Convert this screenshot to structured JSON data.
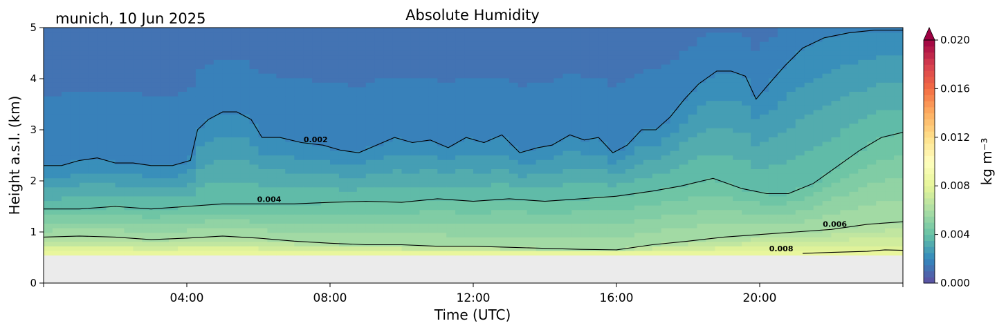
{
  "chart_data": {
    "type": "contour",
    "title": "Absolute Humidity",
    "location_date": "munich, 10 Jun 2025",
    "xlabel": "Time (UTC)",
    "ylabel": "Height a.s.l. (km)",
    "xlim_hours": [
      0,
      24
    ],
    "ylim": [
      0,
      5
    ],
    "x_ticks": [
      {
        "hour": 4,
        "label": "04:00"
      },
      {
        "hour": 8,
        "label": "08:00"
      },
      {
        "hour": 12,
        "label": "12:00"
      },
      {
        "hour": 16,
        "label": "16:00"
      },
      {
        "hour": 20,
        "label": "20:00"
      }
    ],
    "y_ticks": [
      {
        "value": 0,
        "label": "0"
      },
      {
        "value": 1,
        "label": "1"
      },
      {
        "value": 2,
        "label": "2"
      },
      {
        "value": 3,
        "label": "3"
      },
      {
        "value": 4,
        "label": "4"
      },
      {
        "value": 5,
        "label": "5"
      }
    ],
    "data_floor_km": 0.55,
    "no_data_color": "#ebebeb",
    "colormap": "Spectral_r",
    "colorbar": {
      "label": "kg m⁻³",
      "range": [
        0.0,
        0.02
      ],
      "extend": "max",
      "ticks": [
        {
          "value": 0.0,
          "label": "0.000"
        },
        {
          "value": 0.004,
          "label": "0.004"
        },
        {
          "value": 0.008,
          "label": "0.008"
        },
        {
          "value": 0.012,
          "label": "0.012"
        },
        {
          "value": 0.016,
          "label": "0.016"
        },
        {
          "value": 0.02,
          "label": "0.020"
        }
      ]
    },
    "contours": [
      {
        "level": 0.002,
        "label": "0.002",
        "label_hour": 7.6,
        "points": [
          [
            0,
            2.3
          ],
          [
            0.5,
            2.3
          ],
          [
            1,
            2.4
          ],
          [
            1.5,
            2.45
          ],
          [
            2,
            2.35
          ],
          [
            2.5,
            2.35
          ],
          [
            3,
            2.3
          ],
          [
            3.6,
            2.3
          ],
          [
            4.1,
            2.4
          ],
          [
            4.3,
            3.0
          ],
          [
            4.6,
            3.2
          ],
          [
            5,
            3.35
          ],
          [
            5.4,
            3.35
          ],
          [
            5.8,
            3.2
          ],
          [
            6.1,
            2.85
          ],
          [
            6.6,
            2.85
          ],
          [
            7.2,
            2.75
          ],
          [
            7.8,
            2.7
          ],
          [
            8.3,
            2.6
          ],
          [
            8.8,
            2.55
          ],
          [
            9.3,
            2.7
          ],
          [
            9.8,
            2.85
          ],
          [
            10.3,
            2.75
          ],
          [
            10.8,
            2.8
          ],
          [
            11.3,
            2.65
          ],
          [
            11.8,
            2.85
          ],
          [
            12.3,
            2.75
          ],
          [
            12.8,
            2.9
          ],
          [
            13.3,
            2.55
          ],
          [
            13.8,
            2.65
          ],
          [
            14.2,
            2.7
          ],
          [
            14.7,
            2.9
          ],
          [
            15.1,
            2.8
          ],
          [
            15.5,
            2.85
          ],
          [
            15.9,
            2.55
          ],
          [
            16.3,
            2.7
          ],
          [
            16.7,
            3.0
          ],
          [
            17.1,
            3.0
          ],
          [
            17.5,
            3.25
          ],
          [
            17.9,
            3.6
          ],
          [
            18.3,
            3.9
          ],
          [
            18.8,
            4.15
          ],
          [
            19.2,
            4.15
          ],
          [
            19.6,
            4.05
          ],
          [
            19.9,
            3.6
          ],
          [
            20.2,
            3.85
          ],
          [
            20.7,
            4.25
          ],
          [
            21.2,
            4.6
          ],
          [
            21.8,
            4.8
          ],
          [
            22.5,
            4.9
          ],
          [
            23.2,
            4.95
          ],
          [
            24,
            4.95
          ]
        ]
      },
      {
        "level": 0.004,
        "label": "0.004",
        "label_hour": 6.3,
        "points": [
          [
            0,
            1.45
          ],
          [
            1,
            1.45
          ],
          [
            2,
            1.5
          ],
          [
            3,
            1.45
          ],
          [
            4,
            1.5
          ],
          [
            5,
            1.55
          ],
          [
            6,
            1.55
          ],
          [
            7,
            1.55
          ],
          [
            8,
            1.58
          ],
          [
            9,
            1.6
          ],
          [
            10,
            1.58
          ],
          [
            11,
            1.65
          ],
          [
            12,
            1.6
          ],
          [
            13,
            1.65
          ],
          [
            14,
            1.6
          ],
          [
            15,
            1.65
          ],
          [
            16,
            1.7
          ],
          [
            17,
            1.8
          ],
          [
            17.8,
            1.9
          ],
          [
            18.7,
            2.05
          ],
          [
            19.5,
            1.85
          ],
          [
            20.2,
            1.75
          ],
          [
            20.8,
            1.75
          ],
          [
            21.5,
            1.95
          ],
          [
            22.2,
            2.3
          ],
          [
            22.8,
            2.6
          ],
          [
            23.4,
            2.85
          ],
          [
            24,
            2.95
          ]
        ]
      },
      {
        "level": 0.006,
        "label": "0.006",
        "label_hour": 22.1,
        "points": [
          [
            0,
            0.9
          ],
          [
            1,
            0.92
          ],
          [
            2,
            0.9
          ],
          [
            3,
            0.85
          ],
          [
            4,
            0.88
          ],
          [
            5,
            0.92
          ],
          [
            6,
            0.88
          ],
          [
            7,
            0.82
          ],
          [
            8,
            0.78
          ],
          [
            9,
            0.75
          ],
          [
            10,
            0.75
          ],
          [
            11,
            0.72
          ],
          [
            12,
            0.72
          ],
          [
            13,
            0.7
          ],
          [
            14,
            0.68
          ],
          [
            15,
            0.66
          ],
          [
            16,
            0.65
          ],
          [
            17,
            0.75
          ],
          [
            18,
            0.82
          ],
          [
            19,
            0.9
          ],
          [
            20,
            0.95
          ],
          [
            21,
            1.0
          ],
          [
            22,
            1.05
          ],
          [
            23,
            1.15
          ],
          [
            24,
            1.2
          ]
        ]
      },
      {
        "level": 0.008,
        "label": "0.008",
        "label_hour": 20.6,
        "points": [
          [
            21.2,
            0.58
          ],
          [
            22,
            0.6
          ],
          [
            23,
            0.62
          ],
          [
            23.5,
            0.65
          ],
          [
            24,
            0.64
          ]
        ]
      }
    ]
  }
}
